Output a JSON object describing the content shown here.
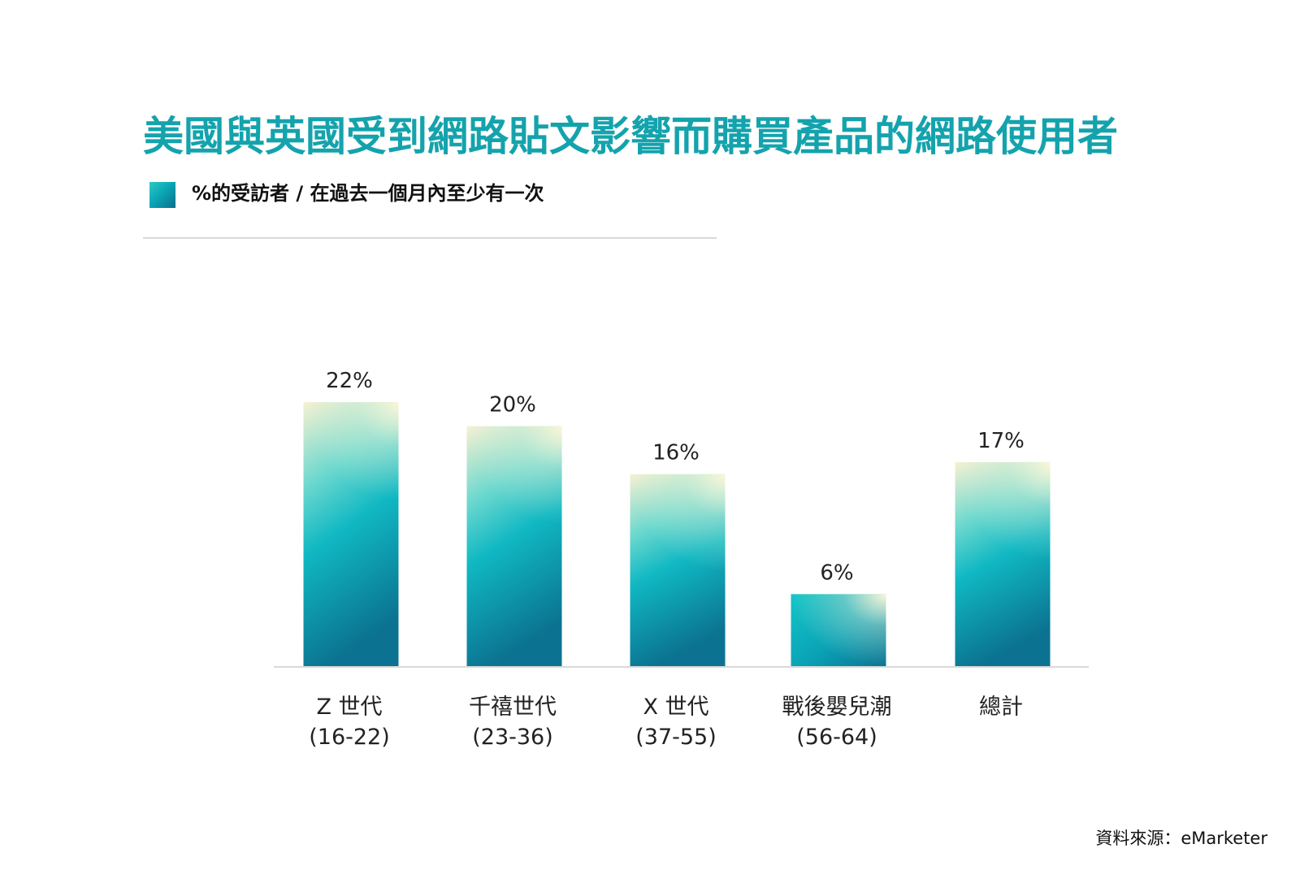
{
  "title": "美國與英國受到網路貼文影響而購買產品的網路使用者",
  "legend": {
    "label": "%的受訪者 / 在過去一個月內至少有一次"
  },
  "source": "資料來源：eMarketer",
  "colors": {
    "title": "#14a3ad",
    "bar_top": "#f5f2d4",
    "bar_mid": "#10b7c2",
    "bar_bottom": "#0b7391"
  },
  "chart_data": {
    "type": "bar",
    "categories": [
      [
        "Z 世代",
        "(16-22)"
      ],
      [
        "千禧世代",
        "(23-36)"
      ],
      [
        "X 世代",
        "(37-55)"
      ],
      [
        "戰後嬰兒潮",
        "(56-64)"
      ],
      [
        "總計",
        ""
      ]
    ],
    "values": [
      22,
      20,
      16,
      6,
      17
    ],
    "value_labels": [
      "22%",
      "20%",
      "16%",
      "6%",
      "17%"
    ],
    "unit": "%",
    "grid": false
  }
}
